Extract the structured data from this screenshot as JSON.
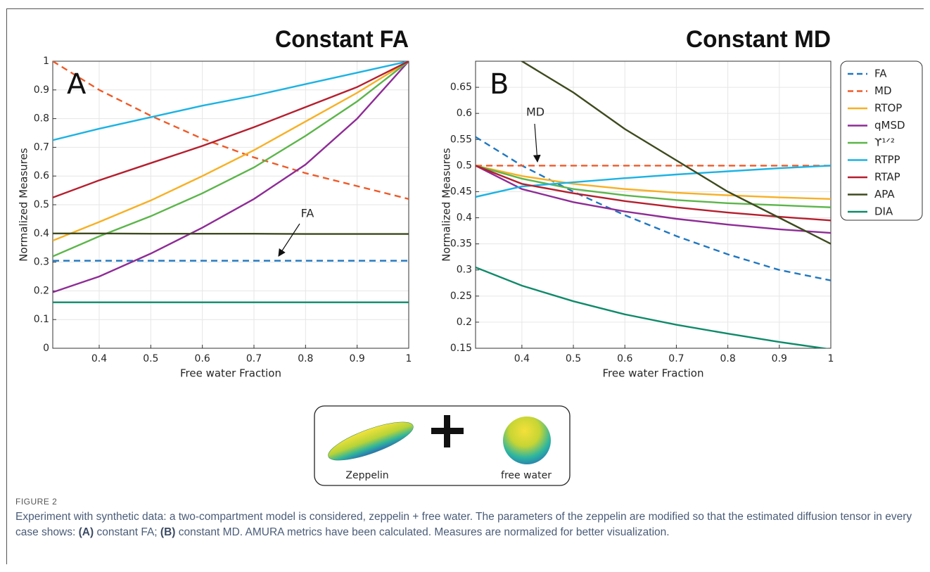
{
  "chart_data": [
    {
      "type": "line",
      "title": "Constant FA",
      "panel_label": "A",
      "xlabel": "Free water Fraction",
      "ylabel": "Normalized Measures",
      "x": [
        0.31,
        0.4,
        0.5,
        0.6,
        0.7,
        0.8,
        0.9,
        1
      ],
      "xlim": [
        0.31,
        1
      ],
      "xticks": [
        0.4,
        0.5,
        0.6,
        0.7,
        0.8,
        0.9,
        1
      ],
      "ylim": [
        0,
        1
      ],
      "yticks": [
        0,
        0.1,
        0.2,
        0.3,
        0.4,
        0.5,
        0.6,
        0.7,
        0.8,
        0.9,
        1
      ],
      "grid": true,
      "series": [
        {
          "color": "#1f77c0",
          "dashed": true,
          "values": [
            0.305,
            0.305,
            0.305,
            0.305,
            0.305,
            0.305,
            0.305,
            0.305
          ]
        },
        {
          "color": "#ef5a28",
          "dashed": true,
          "values": [
            1.0,
            0.9,
            0.81,
            0.73,
            0.665,
            0.61,
            0.565,
            0.52
          ]
        },
        {
          "color": "#f7b024",
          "dashed": false,
          "values": [
            0.375,
            0.44,
            0.515,
            0.6,
            0.69,
            0.79,
            0.89,
            1.0
          ]
        },
        {
          "color": "#8e2c96",
          "dashed": false,
          "values": [
            0.195,
            0.25,
            0.33,
            0.42,
            0.52,
            0.64,
            0.8,
            1.0
          ]
        },
        {
          "color": "#5cb54a",
          "dashed": false,
          "values": [
            0.32,
            0.39,
            0.46,
            0.54,
            0.63,
            0.74,
            0.86,
            1.0
          ]
        },
        {
          "color": "#1cb3e3",
          "dashed": false,
          "values": [
            0.725,
            0.765,
            0.805,
            0.845,
            0.88,
            0.92,
            0.96,
            1.0
          ]
        },
        {
          "color": "#b51f2e",
          "dashed": false,
          "values": [
            0.525,
            0.585,
            0.645,
            0.705,
            0.77,
            0.84,
            0.91,
            1.0
          ]
        },
        {
          "color": "#3d4a1e",
          "dashed": false,
          "values": [
            0.4,
            0.4,
            0.399,
            0.399,
            0.399,
            0.398,
            0.398,
            0.398
          ]
        },
        {
          "color": "#0f8a6a",
          "dashed": false,
          "values": [
            0.16,
            0.16,
            0.16,
            0.16,
            0.16,
            0.16,
            0.16,
            0.16
          ]
        }
      ],
      "annotations": [
        {
          "text": "FA"
        }
      ]
    },
    {
      "type": "line",
      "title": "Constant MD",
      "panel_label": "B",
      "xlabel": "Free water Fraction",
      "ylabel": "Normalized Measures",
      "x": [
        0.31,
        0.4,
        0.5,
        0.6,
        0.7,
        0.8,
        0.9,
        1
      ],
      "xlim": [
        0.31,
        1
      ],
      "xticks": [
        0.4,
        0.5,
        0.6,
        0.7,
        0.8,
        0.9,
        1
      ],
      "ylim": [
        0.15,
        0.7
      ],
      "yticks": [
        0.15,
        0.2,
        0.25,
        0.3,
        0.35,
        0.4,
        0.45,
        0.5,
        0.55,
        0.6,
        0.65
      ],
      "grid": true,
      "legend": "right-outside",
      "series": [
        {
          "name": "FA",
          "color": "#1f77c0",
          "dashed": true,
          "values": [
            0.555,
            0.5,
            0.45,
            0.405,
            0.365,
            0.33,
            0.3,
            0.28
          ]
        },
        {
          "name": "MD",
          "color": "#ef5a28",
          "dashed": true,
          "values": [
            0.5,
            0.5,
            0.5,
            0.5,
            0.5,
            0.5,
            0.5,
            0.5
          ]
        },
        {
          "name": "RTOP",
          "color": "#f7b024",
          "dashed": false,
          "values": [
            0.5,
            0.48,
            0.465,
            0.455,
            0.448,
            0.443,
            0.439,
            0.436
          ]
        },
        {
          "name": "qMSD",
          "color": "#8e2c96",
          "dashed": false,
          "values": [
            0.5,
            0.455,
            0.43,
            0.412,
            0.398,
            0.387,
            0.378,
            0.371
          ]
        },
        {
          "name": "ϒ¹ᐟ²",
          "color": "#5cb54a",
          "dashed": false,
          "values": [
            0.5,
            0.475,
            0.455,
            0.443,
            0.434,
            0.428,
            0.424,
            0.42
          ]
        },
        {
          "name": "RTPP",
          "color": "#1cb3e3",
          "dashed": false,
          "values": [
            0.44,
            0.46,
            0.468,
            0.476,
            0.483,
            0.489,
            0.495,
            0.5
          ]
        },
        {
          "name": "RTAP",
          "color": "#b51f2e",
          "dashed": false,
          "values": [
            0.5,
            0.465,
            0.447,
            0.432,
            0.42,
            0.41,
            0.402,
            0.395
          ]
        },
        {
          "name": "APA",
          "color": "#3d4a1e",
          "dashed": false,
          "values": [
            0.76,
            0.7,
            0.64,
            0.57,
            0.51,
            0.45,
            0.4,
            0.35
          ]
        },
        {
          "name": "DIA",
          "color": "#0f8a6a",
          "dashed": false,
          "values": [
            0.305,
            0.27,
            0.24,
            0.215,
            0.195,
            0.178,
            0.162,
            0.148
          ]
        }
      ],
      "annotations": [
        {
          "text": "MD"
        }
      ]
    }
  ],
  "inset": {
    "left_label": "Zeppelin",
    "right_label": "free water"
  },
  "figure_label": "FIGURE 2",
  "caption": [
    "Experiment with synthetic data: a two-compartment model is considered, zeppelin + free water. The parameters of the zeppelin are modified so that the estimated diffusion tensor in every case shows: ",
    "(A)",
    " constant FA; ",
    "(B)",
    " constant MD. AMURA metrics have been calculated. Measures are normalized for better visualization."
  ]
}
